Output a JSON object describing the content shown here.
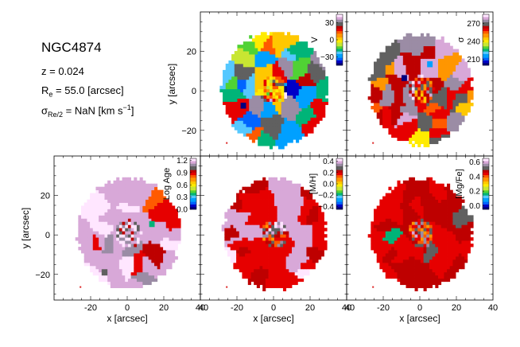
{
  "info": {
    "galaxy_name": "NGC4874",
    "redshift_line": "z = 0.024",
    "re_symbol": "R",
    "re_sub": "e",
    "re_value": " = 55.0 [arcsec]",
    "sigma_symbol": "σ",
    "sigma_sub": "Re/2",
    "sigma_value_pre": " = NaN [km s",
    "sigma_value_exp": "−1",
    "sigma_value_post": "]"
  },
  "chart_data": [
    {
      "type": "heatmap",
      "title": "",
      "quantity": "V",
      "xlabel": "",
      "ylabel": "y [arcsec]",
      "xlim": [
        -40,
        40
      ],
      "ylim": [
        -33,
        40
      ],
      "xticks": [
        -20,
        0,
        20,
        40
      ],
      "yticks": [
        -20,
        0,
        20
      ],
      "show_x_ticklabels": false,
      "show_y_ticklabels": true,
      "colorbar": {
        "label": "V",
        "range": [
          -45,
          45
        ],
        "ticks": [
          30,
          0,
          -30
        ],
        "ticklabels": [
          "30",
          "0",
          "−30"
        ],
        "colormap": "sauron"
      },
      "map": {
        "center": [
          0,
          0
        ],
        "radius_arcsec": 29,
        "levels": [
          0.52,
          0.35,
          0.48,
          0.9,
          0.22,
          0.18,
          0.55,
          0.62,
          0.85,
          0.7,
          0.33,
          0.8,
          0.25,
          0.3,
          0.72,
          0.82,
          0.2,
          0.18,
          0.28,
          0.4,
          0.86,
          0.9,
          0.75,
          0.3,
          0.22,
          0.25,
          0.05,
          0.18,
          0.35,
          0.75,
          0.62,
          0.28,
          0.45,
          0.55,
          0.3,
          0.12,
          0.5,
          0.38,
          0.8,
          0.25,
          0.15,
          0.72,
          0.88,
          0.12,
          0.3,
          0.68,
          0.55
        ],
        "outliers": [
          {
            "x": -18,
            "y": -9,
            "level": 0.0
          }
        ]
      }
    },
    {
      "type": "heatmap",
      "title": "",
      "quantity": "σ",
      "xlabel": "",
      "ylabel": "",
      "xlim": [
        -40,
        40
      ],
      "ylim": [
        -33,
        40
      ],
      "xticks": [
        -20,
        0,
        20,
        40
      ],
      "yticks": [
        -20,
        0,
        20
      ],
      "show_x_ticklabels": false,
      "show_y_ticklabels": false,
      "colorbar": {
        "label": "σ",
        "range": [
          200,
          285
        ],
        "ticks": [
          270,
          240,
          210
        ],
        "ticklabels": [
          "270",
          "240",
          "210"
        ],
        "colormap": "sauron"
      },
      "map": {
        "center": [
          0,
          0
        ],
        "radius_arcsec": 28,
        "levels": [
          0.72,
          0.84,
          0.62,
          0.78,
          0.95,
          0.9,
          0.45,
          0.86,
          0.88,
          0.55,
          0.92,
          0.7,
          0.76,
          0.68,
          0.82,
          0.87,
          0.6,
          0.8,
          0.9,
          0.77,
          0.94,
          0.79,
          0.56,
          0.85,
          0.72,
          0.9,
          0.68,
          0.66,
          0.81,
          0.92,
          0.78,
          0.74,
          0.6,
          0.89,
          0.83,
          0.8,
          0.7,
          0.95,
          0.76,
          0.72,
          0.87,
          0.67,
          0.84,
          0.58,
          0.9,
          0.75,
          0.82
        ],
        "outliers": [
          {
            "x": -10,
            "y": 5,
            "level": 0.0
          },
          {
            "x": 4,
            "y": 12,
            "level": 0.18
          }
        ]
      }
    },
    {
      "type": "heatmap",
      "title": "",
      "quantity": "Log Age",
      "xlabel": "x [arcsec]",
      "ylabel": "y [arcsec]",
      "xlim": [
        -40,
        40
      ],
      "ylim": [
        -33,
        40
      ],
      "xticks": [
        -20,
        0,
        20,
        40
      ],
      "yticks": [
        -20,
        0,
        20
      ],
      "show_x_ticklabels": true,
      "show_y_ticklabels": true,
      "colorbar": {
        "label": "Log Age",
        "range": [
          0.0,
          1.25
        ],
        "ticks": [
          1.2,
          0.9,
          0.6,
          0.3,
          0.0
        ],
        "ticklabels": [
          "1.2",
          "0.9",
          "0.6",
          "0.3",
          "0.0"
        ],
        "colormap": "sauron"
      },
      "map": {
        "center": [
          0,
          0
        ],
        "radius_arcsec": 28,
        "levels": [
          0.9,
          0.95,
          0.93,
          0.96,
          0.99,
          0.82,
          0.7,
          0.96,
          0.93,
          0.99,
          0.97,
          0.93,
          0.92,
          0.95,
          0.98,
          0.68,
          0.96,
          0.94,
          0.96,
          0.93,
          0.99,
          0.97,
          0.74,
          0.95,
          0.65,
          0.94,
          0.98,
          0.9,
          0.96,
          0.99,
          0.95,
          0.97,
          0.93,
          0.94,
          0.7,
          0.96,
          0.98,
          0.92,
          0.95,
          0.99,
          0.97,
          0.94,
          0.96,
          0.9,
          0.93,
          0.72,
          0.95
        ],
        "outliers": [
          {
            "x": 12,
            "y": 4,
            "level": 0.3
          }
        ]
      }
    },
    {
      "type": "heatmap",
      "title": "",
      "quantity": "[M/H]",
      "xlabel": "x [arcsec]",
      "ylabel": "",
      "xlim": [
        -40,
        40
      ],
      "ylim": [
        -33,
        40
      ],
      "xticks": [
        -20,
        0,
        20,
        40
      ],
      "yticks": [
        -20,
        0,
        20
      ],
      "show_x_ticklabels": true,
      "show_y_ticklabels": false,
      "colorbar": {
        "label": "[M/H]",
        "range": [
          -0.45,
          0.45
        ],
        "ticks": [
          0.4,
          0.2,
          0.0,
          -0.2,
          -0.4
        ],
        "ticklabels": [
          "0.4",
          "0.2",
          "0.0",
          "−0.2",
          "−0.4"
        ],
        "colormap": "sauron"
      },
      "map": {
        "center": [
          0,
          0
        ],
        "radius_arcsec": 28,
        "levels": [
          0.68,
          0.74,
          0.7,
          0.72,
          0.96,
          0.74,
          0.69,
          0.73,
          0.95,
          0.72,
          0.97,
          0.7,
          0.93,
          0.74,
          0.71,
          0.75,
          0.96,
          0.73,
          0.69,
          0.94,
          0.72,
          0.99,
          0.7,
          0.97,
          0.74,
          0.68,
          0.95,
          0.72,
          0.7,
          0.74,
          0.98,
          0.71,
          0.73,
          0.96,
          0.69,
          0.72,
          0.74,
          0.95,
          0.97,
          0.7,
          0.73,
          0.71,
          0.94,
          0.72,
          0.96,
          0.68,
          0.74
        ],
        "outliers": []
      }
    },
    {
      "type": "heatmap",
      "title": "",
      "quantity": "[Mg/Fe]",
      "xlabel": "x [arcsec]",
      "ylabel": "",
      "xlim": [
        -40,
        40
      ],
      "ylim": [
        -33,
        40
      ],
      "xticks": [
        -20,
        0,
        20,
        40
      ],
      "yticks": [
        -20,
        0,
        20
      ],
      "show_x_ticklabels": true,
      "show_y_ticklabels": false,
      "colorbar": {
        "label": "[Mg/Fe]",
        "range": [
          -0.05,
          0.65
        ],
        "ticks": [
          0.6,
          0.4,
          0.2,
          0.0
        ],
        "ticklabels": [
          "0.6",
          "0.4",
          "0.2",
          "0.0"
        ],
        "colormap": "sauron"
      },
      "map": {
        "center": [
          0,
          0
        ],
        "radius_arcsec": 28,
        "levels": [
          0.7,
          0.76,
          0.72,
          0.78,
          0.75,
          0.68,
          0.73,
          0.3,
          0.71,
          0.77,
          0.74,
          0.72,
          0.69,
          0.8,
          0.76,
          0.71,
          0.73,
          0.75,
          0.72,
          0.78,
          0.74,
          0.7,
          0.76,
          0.73,
          0.71,
          0.74,
          0.77,
          0.72,
          0.75,
          0.69,
          0.8,
          0.73,
          0.71,
          0.76,
          0.72,
          0.74,
          0.7,
          0.78,
          0.73,
          0.75,
          0.71,
          0.77,
          0.72,
          0.74,
          0.69,
          0.73,
          0.76
        ],
        "outliers": []
      }
    }
  ],
  "colormaps": {
    "sauron": [
      "#01007f",
      "#0000c8",
      "#0064ff",
      "#00a0ff",
      "#55c8ff",
      "#00b478",
      "#50d234",
      "#c8e632",
      "#ffeb00",
      "#ffc800",
      "#ff9600",
      "#ff5a00",
      "#e60000",
      "#be0000",
      "#606060",
      "#9b8ca5",
      "#d8a8d8",
      "#ffe6ff"
    ]
  }
}
